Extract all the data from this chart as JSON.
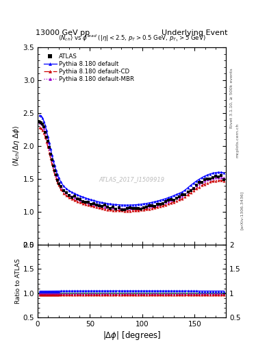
{
  "title_left": "13000 GeV pp",
  "title_right": "Underlying Event",
  "xlabel": "|\\u0394\\u03c6| [degrees]",
  "ylabel_main": "\\u27e8N_{ch} / \\u0394\\u03b7 \\u0394\\u03c6\\u27e9",
  "ylabel_ratio": "Ratio to ATLAS",
  "watermark": "ATLAS_2017_I1509919",
  "xlim": [
    0,
    180
  ],
  "ylim_main": [
    0.5,
    3.5
  ],
  "ylim_ratio": [
    0.5,
    2.0
  ],
  "yticks_main": [
    0.5,
    1.0,
    1.5,
    2.0,
    2.5,
    3.0,
    3.5
  ],
  "yticks_ratio": [
    0.5,
    1.0,
    1.5,
    2.0
  ],
  "xticks": [
    0,
    50,
    100,
    150
  ],
  "background_color": "#ffffff",
  "atlas_color": "#000000",
  "pythia_default_color": "#0000ff",
  "pythia_cd_color": "#cc0000",
  "pythia_mbr_color": "#9900cc",
  "ratio_ref_color": "#00bb00",
  "right_label1": "Rivet 3.1.10, ≥ 500k events",
  "right_label2": "mcplots.cern.ch",
  "right_label3": "[arXiv:1306.3436]"
}
